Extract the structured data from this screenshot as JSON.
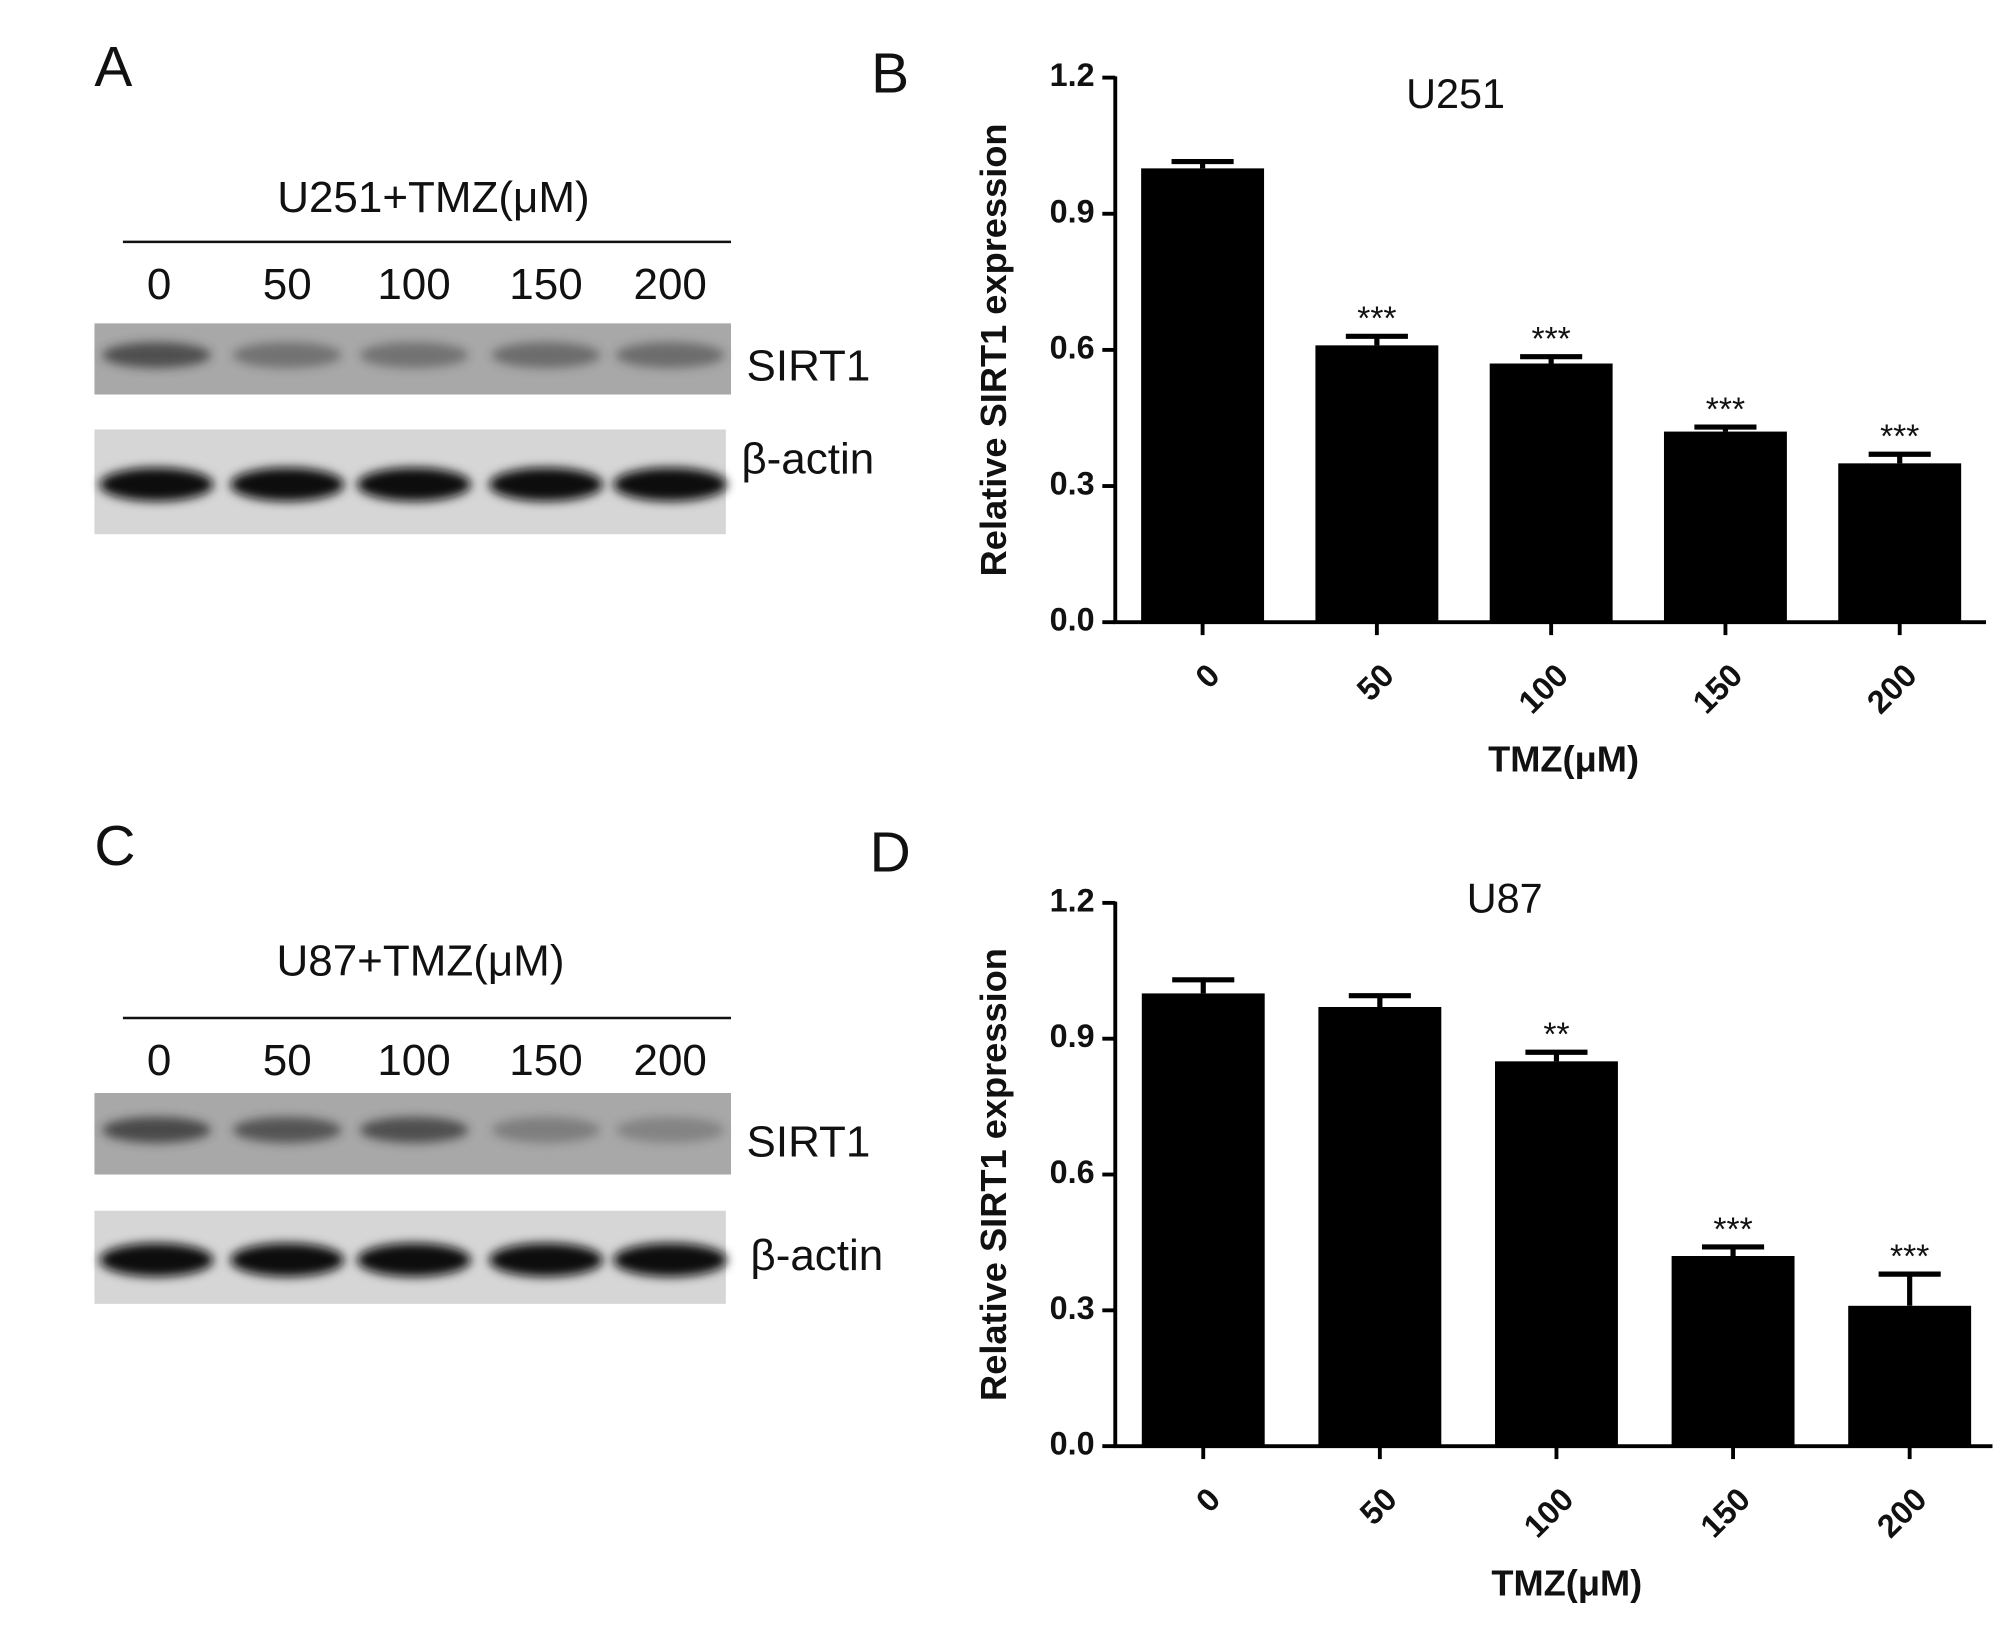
{
  "blots": [
    {
      "panel": "A",
      "title": "U251+TMZ(μM)",
      "lanes": [
        "0",
        "50",
        "100",
        "150",
        "200"
      ],
      "rows": [
        "SIRT1",
        "β-actin"
      ]
    },
    {
      "panel": "C",
      "title": "U87+TMZ(μM)",
      "lanes": [
        "0",
        "50",
        "100",
        "150",
        "200"
      ],
      "rows": [
        "SIRT1",
        "β-actin"
      ]
    }
  ],
  "chart_data": [
    {
      "type": "bar",
      "panel": "B",
      "title": "U251",
      "xlabel": "TMZ(μM)",
      "ylabel": "Relative SIRT1 expression",
      "categories": [
        "0",
        "50",
        "100",
        "150",
        "200"
      ],
      "values": [
        1.0,
        0.61,
        0.57,
        0.42,
        0.35
      ],
      "errors": [
        0.015,
        0.02,
        0.015,
        0.01,
        0.02
      ],
      "annotations": [
        null,
        "***",
        "***",
        "***",
        "***"
      ],
      "color": "#000000",
      "ylim": [
        0,
        1.2
      ],
      "yticks": [
        {
          "value": 0,
          "label": "0.0"
        },
        0.3,
        0.6,
        0.9,
        1.2
      ]
    },
    {
      "type": "bar",
      "panel": "D",
      "title": "U87",
      "xlabel": "TMZ(μM)",
      "ylabel": "Relative SIRT1 expression",
      "categories": [
        "0",
        "50",
        "100",
        "150",
        "200"
      ],
      "values": [
        1.0,
        0.97,
        0.85,
        0.42,
        0.31
      ],
      "errors": [
        0.03,
        0.025,
        0.02,
        0.02,
        0.07
      ],
      "annotations": [
        null,
        null,
        "**",
        "***",
        "***"
      ],
      "color": "#000000",
      "ylim": [
        0,
        1.2
      ],
      "yticks": [
        {
          "value": 0,
          "label": "0.0"
        },
        0.3,
        0.6,
        0.9,
        1.2
      ]
    }
  ]
}
